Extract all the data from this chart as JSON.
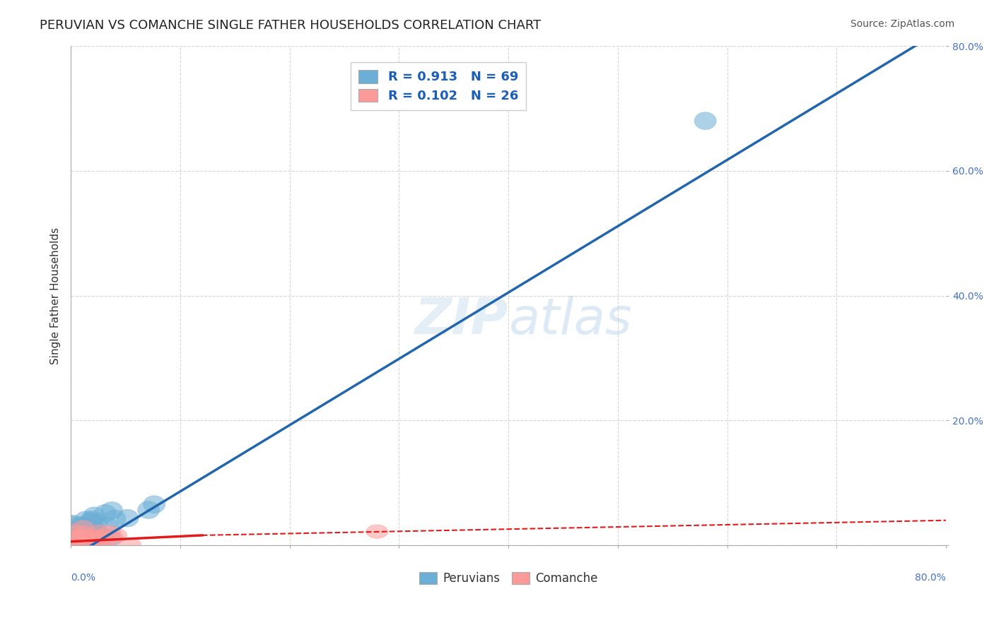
{
  "title": "PERUVIAN VS COMANCHE SINGLE FATHER HOUSEHOLDS CORRELATION CHART",
  "source": "Source: ZipAtlas.com",
  "ylabel": "Single Father Households",
  "x_range": [
    0.0,
    0.8
  ],
  "y_range": [
    0.0,
    0.8
  ],
  "blue_R": "0.913",
  "blue_N": "69",
  "pink_R": "0.102",
  "pink_N": "26",
  "blue_color": "#6baed6",
  "pink_color": "#fb9a99",
  "blue_line_color": "#2166ac",
  "pink_line_color": "#e31a1c",
  "legend_label_blue": "Peruvians",
  "legend_label_pink": "Comanche",
  "background_color": "#ffffff",
  "grid_color": "#cccccc"
}
